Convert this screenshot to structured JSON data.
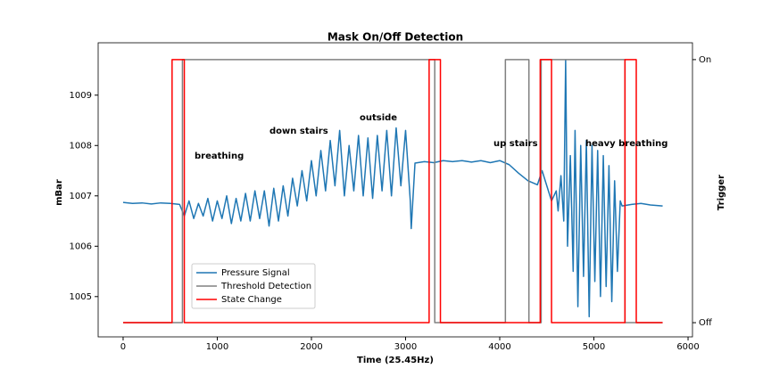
{
  "chart_data": {
    "type": "line",
    "title": "Mask On/Off Detection",
    "xlabel": "Time (25.45Hz)",
    "ylabel": "mBar",
    "y2label": "Trigger",
    "xlim": [
      -265,
      6047
    ],
    "ylim": [
      1004.2,
      1010.04
    ],
    "y2lim": [
      -0.054,
      1.064
    ],
    "xticks": [
      0,
      1000,
      2000,
      3000,
      4000,
      5000,
      6000
    ],
    "yticks": [
      1005,
      1006,
      1007,
      1008,
      1009
    ],
    "y2ticks": [
      {
        "value": 0,
        "label": "Off"
      },
      {
        "value": 1,
        "label": "On"
      }
    ],
    "annotations": [
      "breathing",
      "down stairs",
      "outside",
      "up stairs",
      "heavy breathing"
    ],
    "series": [
      {
        "name": "Pressure Signal",
        "color": "#1f77b4",
        "x": [
          0,
          100,
          200,
          300,
          400,
          500,
          600,
          650,
          700,
          750,
          800,
          850,
          900,
          950,
          1000,
          1050,
          1100,
          1150,
          1200,
          1250,
          1300,
          1350,
          1400,
          1450,
          1500,
          1550,
          1600,
          1650,
          1700,
          1750,
          1800,
          1850,
          1900,
          1950,
          2000,
          2050,
          2100,
          2150,
          2200,
          2250,
          2300,
          2350,
          2400,
          2450,
          2500,
          2550,
          2600,
          2650,
          2700,
          2750,
          2800,
          2850,
          2900,
          2950,
          3000,
          3050,
          3060,
          3100,
          3200,
          3300,
          3400,
          3500,
          3600,
          3700,
          3800,
          3900,
          4000,
          4100,
          4200,
          4300,
          4400,
          4450,
          4500,
          4550,
          4600,
          4620,
          4650,
          4680,
          4700,
          4720,
          4750,
          4780,
          4800,
          4830,
          4860,
          4890,
          4920,
          4950,
          4980,
          5010,
          5040,
          5070,
          5100,
          5130,
          5160,
          5190,
          5220,
          5250,
          5280,
          5300,
          5400,
          5500,
          5600,
          5730
        ],
        "values": [
          1006.87,
          1006.85,
          1006.86,
          1006.84,
          1006.86,
          1006.85,
          1006.83,
          1006.6,
          1006.9,
          1006.55,
          1006.85,
          1006.6,
          1006.95,
          1006.5,
          1006.9,
          1006.55,
          1007.0,
          1006.45,
          1006.95,
          1006.5,
          1007.05,
          1006.5,
          1007.1,
          1006.55,
          1007.1,
          1006.4,
          1007.15,
          1006.5,
          1007.2,
          1006.6,
          1007.35,
          1006.8,
          1007.5,
          1006.9,
          1007.7,
          1007.0,
          1007.9,
          1007.1,
          1008.1,
          1007.2,
          1008.3,
          1007.0,
          1008.0,
          1007.1,
          1008.2,
          1007.0,
          1008.15,
          1006.95,
          1008.2,
          1007.1,
          1008.3,
          1007.0,
          1008.35,
          1007.2,
          1008.3,
          1006.9,
          1006.35,
          1007.65,
          1007.68,
          1007.66,
          1007.7,
          1007.68,
          1007.7,
          1007.67,
          1007.7,
          1007.66,
          1007.7,
          1007.62,
          1007.45,
          1007.3,
          1007.22,
          1007.5,
          1007.2,
          1006.9,
          1007.1,
          1006.7,
          1007.4,
          1006.5,
          1009.7,
          1006.0,
          1007.8,
          1005.5,
          1008.3,
          1004.8,
          1008.0,
          1005.4,
          1008.1,
          1004.6,
          1008.0,
          1005.3,
          1007.9,
          1005.0,
          1007.8,
          1005.2,
          1007.6,
          1004.9,
          1007.3,
          1005.5,
          1006.9,
          1006.8,
          1006.83,
          1006.85,
          1006.82,
          1006.8
        ]
      },
      {
        "name": "Threshold Detection",
        "color": "#808080",
        "axis": "y2",
        "x": [
          0,
          630,
          630,
          3310,
          3310,
          4060,
          4060,
          4310,
          4310,
          4440,
          4440,
          5330,
          5330,
          5730
        ],
        "values": [
          0,
          0,
          1,
          1,
          0,
          0,
          1,
          1,
          0,
          0,
          1,
          1,
          0,
          0
        ]
      },
      {
        "name": "State Change",
        "color": "#ff0000",
        "axis": "y2",
        "x": [
          0,
          520,
          520,
          650,
          650,
          3250,
          3250,
          3370,
          3370,
          4430,
          4430,
          4550,
          4550,
          5330,
          5330,
          5450,
          5450,
          5730
        ],
        "values": [
          0,
          0,
          1,
          1,
          0,
          0,
          1,
          1,
          0,
          0,
          1,
          1,
          0,
          0,
          1,
          1,
          0,
          0
        ]
      }
    ]
  }
}
